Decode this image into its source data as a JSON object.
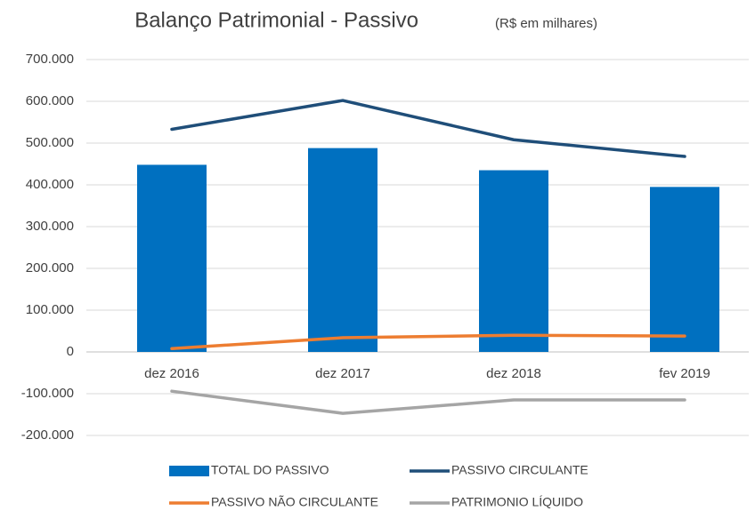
{
  "chart_data": {
    "type": "bar_line",
    "title": "Balanço Patrimonial  - Passivo",
    "subtitle": "(R$ em milhares)",
    "categories": [
      "dez 2016",
      "dez 2017",
      "dez 2018",
      "fev 2019"
    ],
    "series": [
      {
        "name": "TOTAL DO PASSIVO",
        "type": "bar",
        "color": "#0070c0",
        "values": [
          448000,
          488000,
          435000,
          395000
        ]
      },
      {
        "name": "PASSIVO CIRCULANTE",
        "type": "line",
        "color": "#1f4e79",
        "values": [
          533000,
          602000,
          508000,
          468000
        ]
      },
      {
        "name": "PASSIVO NÃO CIRCULANTE",
        "type": "line",
        "color": "#ed7d31",
        "values": [
          8000,
          34000,
          40000,
          38000
        ]
      },
      {
        "name": "PATRIMONIO LÍQUIDO",
        "type": "line",
        "color": "#a5a5a5",
        "values": [
          -94000,
          -147000,
          -115000,
          -115000
        ]
      }
    ],
    "ylim": [
      -200000,
      700000
    ],
    "yticks": [
      {
        "value": -200000,
        "label": "-200.000"
      },
      {
        "value": -100000,
        "label": "-100.000"
      },
      0,
      {
        "value": 100000,
        "label": "100.000"
      },
      {
        "value": 200000,
        "label": "200.000"
      },
      {
        "value": 300000,
        "label": "300.000"
      },
      {
        "value": 400000,
        "label": "400.000"
      },
      {
        "value": 500000,
        "label": "500.000"
      },
      {
        "value": 600000,
        "label": "600.000"
      },
      {
        "value": 700000,
        "label": "700.000"
      }
    ],
    "grid": true,
    "legend": "bottom"
  }
}
